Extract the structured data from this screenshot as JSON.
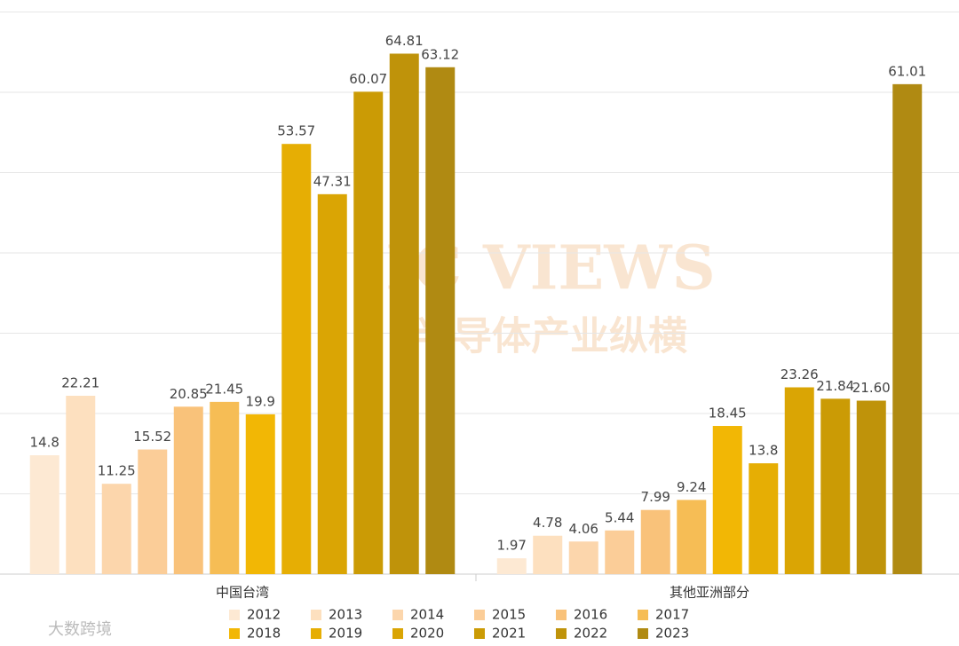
{
  "chart_data": {
    "type": "bar",
    "categories": [
      "中国台湾",
      "其他亚洲部分"
    ],
    "series": [
      {
        "name": "2012",
        "color": "#fde9d3",
        "values": [
          14.8,
          1.97
        ]
      },
      {
        "name": "2013",
        "color": "#fde0bf",
        "values": [
          22.21,
          4.78
        ]
      },
      {
        "name": "2014",
        "color": "#fcd6ac",
        "values": [
          11.25,
          4.06
        ]
      },
      {
        "name": "2015",
        "color": "#fbcd98",
        "values": [
          15.52,
          5.44
        ]
      },
      {
        "name": "2016",
        "color": "#f9c27a",
        "values": [
          20.85,
          7.99
        ]
      },
      {
        "name": "2017",
        "color": "#f6bd55",
        "values": [
          21.45,
          9.24
        ]
      },
      {
        "name": "2018",
        "color": "#f2b705",
        "values": [
          19.9,
          18.45
        ]
      },
      {
        "name": "2019",
        "color": "#e6ae04",
        "values": [
          53.57,
          13.8
        ]
      },
      {
        "name": "2020",
        "color": "#daa504",
        "values": [
          47.31,
          23.26
        ]
      },
      {
        "name": "2021",
        "color": "#cb9b05",
        "values": [
          60.07,
          21.84
        ]
      },
      {
        "name": "2022",
        "color": "#bf930a",
        "values": [
          64.81,
          21.6
        ],
        "value_labels": [
          "64.81",
          "21.60"
        ]
      },
      {
        "name": "2023",
        "color": "#b08a12",
        "values": [
          63.12,
          61.01
        ]
      }
    ],
    "ylim": [
      0,
      70
    ],
    "yticks": [
      0,
      10,
      20,
      30,
      40,
      50,
      60,
      70
    ],
    "grid": true,
    "annotations": [
      "IC VIEWS",
      "半导体产业纵横",
      "大数跨境"
    ]
  }
}
